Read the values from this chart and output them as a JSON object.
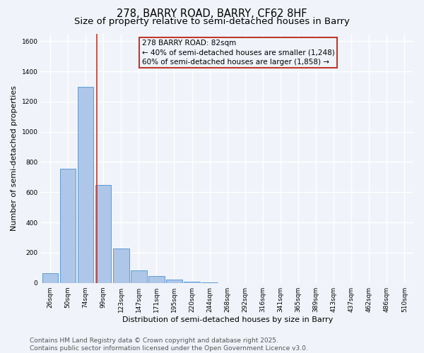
{
  "title1": "278, BARRY ROAD, BARRY, CF62 8HF",
  "title2": "Size of property relative to semi-detached houses in Barry",
  "xlabel": "Distribution of semi-detached houses by size in Barry",
  "ylabel": "Number of semi-detached properties",
  "bar_labels": [
    "26sqm",
    "50sqm",
    "74sqm",
    "99sqm",
    "123sqm",
    "147sqm",
    "171sqm",
    "195sqm",
    "220sqm",
    "244sqm",
    "268sqm",
    "292sqm",
    "316sqm",
    "341sqm",
    "365sqm",
    "389sqm",
    "413sqm",
    "437sqm",
    "462sqm",
    "486sqm",
    "510sqm"
  ],
  "bar_values": [
    62,
    756,
    1295,
    648,
    228,
    85,
    45,
    22,
    8,
    2,
    0,
    0,
    0,
    0,
    0,
    0,
    0,
    0,
    0,
    0,
    0
  ],
  "bar_color": "#aec6e8",
  "bar_edge_color": "#5b9bd5",
  "ylim": [
    0,
    1650
  ],
  "yticks": [
    0,
    200,
    400,
    600,
    800,
    1000,
    1200,
    1400,
    1600
  ],
  "vline_x": 2.62,
  "vline_color": "#c0392b",
  "annotation_title": "278 BARRY ROAD: 82sqm",
  "annotation_line1": "← 40% of semi-detached houses are smaller (1,248)",
  "annotation_line2": "60% of semi-detached houses are larger (1,858) →",
  "annotation_box_color": "#c0392b",
  "footer_line1": "Contains HM Land Registry data © Crown copyright and database right 2025.",
  "footer_line2": "Contains public sector information licensed under the Open Government Licence v3.0.",
  "bg_color": "#f0f4fa",
  "grid_color": "#ffffff",
  "title_fontsize": 10.5,
  "subtitle_fontsize": 9.5,
  "label_fontsize": 8,
  "tick_fontsize": 6.5,
  "footer_fontsize": 6.5,
  "annot_fontsize": 7.5
}
